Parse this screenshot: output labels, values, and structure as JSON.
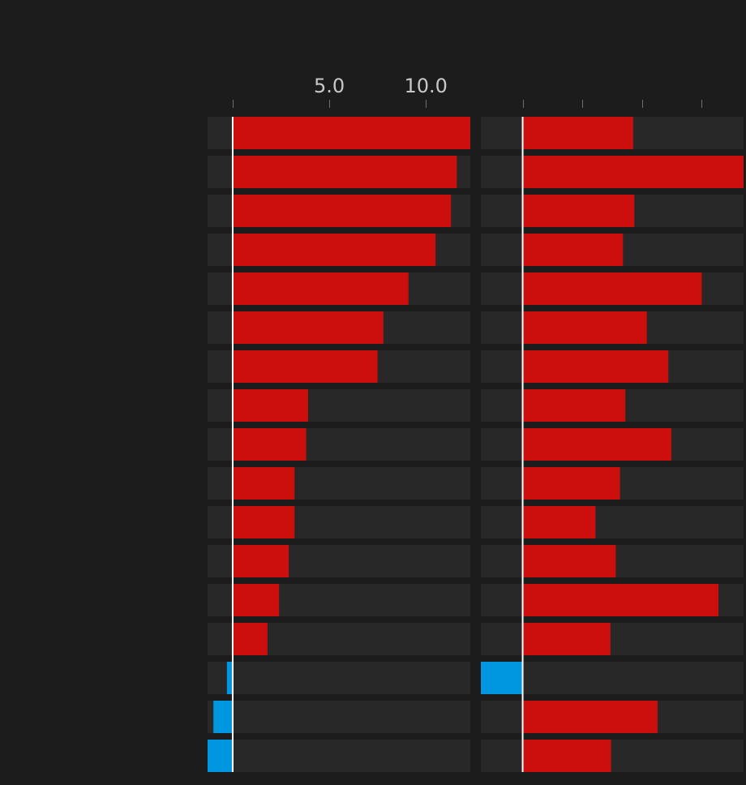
{
  "chart_data": [
    {
      "type": "bar",
      "orientation": "horizontal",
      "tick_labels": [
        "5.0",
        "10.0"
      ],
      "ticks": [
        0,
        5,
        10
      ],
      "xlim": [
        -1.3,
        12.3
      ],
      "values": [
        12.3,
        11.6,
        11.3,
        10.5,
        9.1,
        7.8,
        7.5,
        3.9,
        3.8,
        3.2,
        3.2,
        2.9,
        2.4,
        1.8,
        -0.3,
        -1.0,
        -1.3
      ],
      "colors": {
        "positive": "#cc0f0c",
        "negative": "#0097e0",
        "track": "#282828",
        "zero_line": "#ffffff",
        "tick_label": "#c8c8c8"
      }
    },
    {
      "type": "bar",
      "orientation": "horizontal",
      "tick_labels": [],
      "ticks": [
        0,
        1,
        2,
        3
      ],
      "xlim": [
        -0.7,
        3.7
      ],
      "values": [
        1.85,
        3.7,
        1.87,
        1.68,
        3.0,
        2.08,
        2.44,
        1.72,
        2.49,
        1.63,
        1.22,
        1.56,
        3.28,
        1.47,
        -0.7,
        2.26,
        1.48
      ],
      "colors": {
        "positive": "#cc0f0c",
        "negative": "#0097e0",
        "track": "#282828",
        "zero_line": "#ffffff",
        "tick_label": "#c8c8c8"
      }
    }
  ]
}
